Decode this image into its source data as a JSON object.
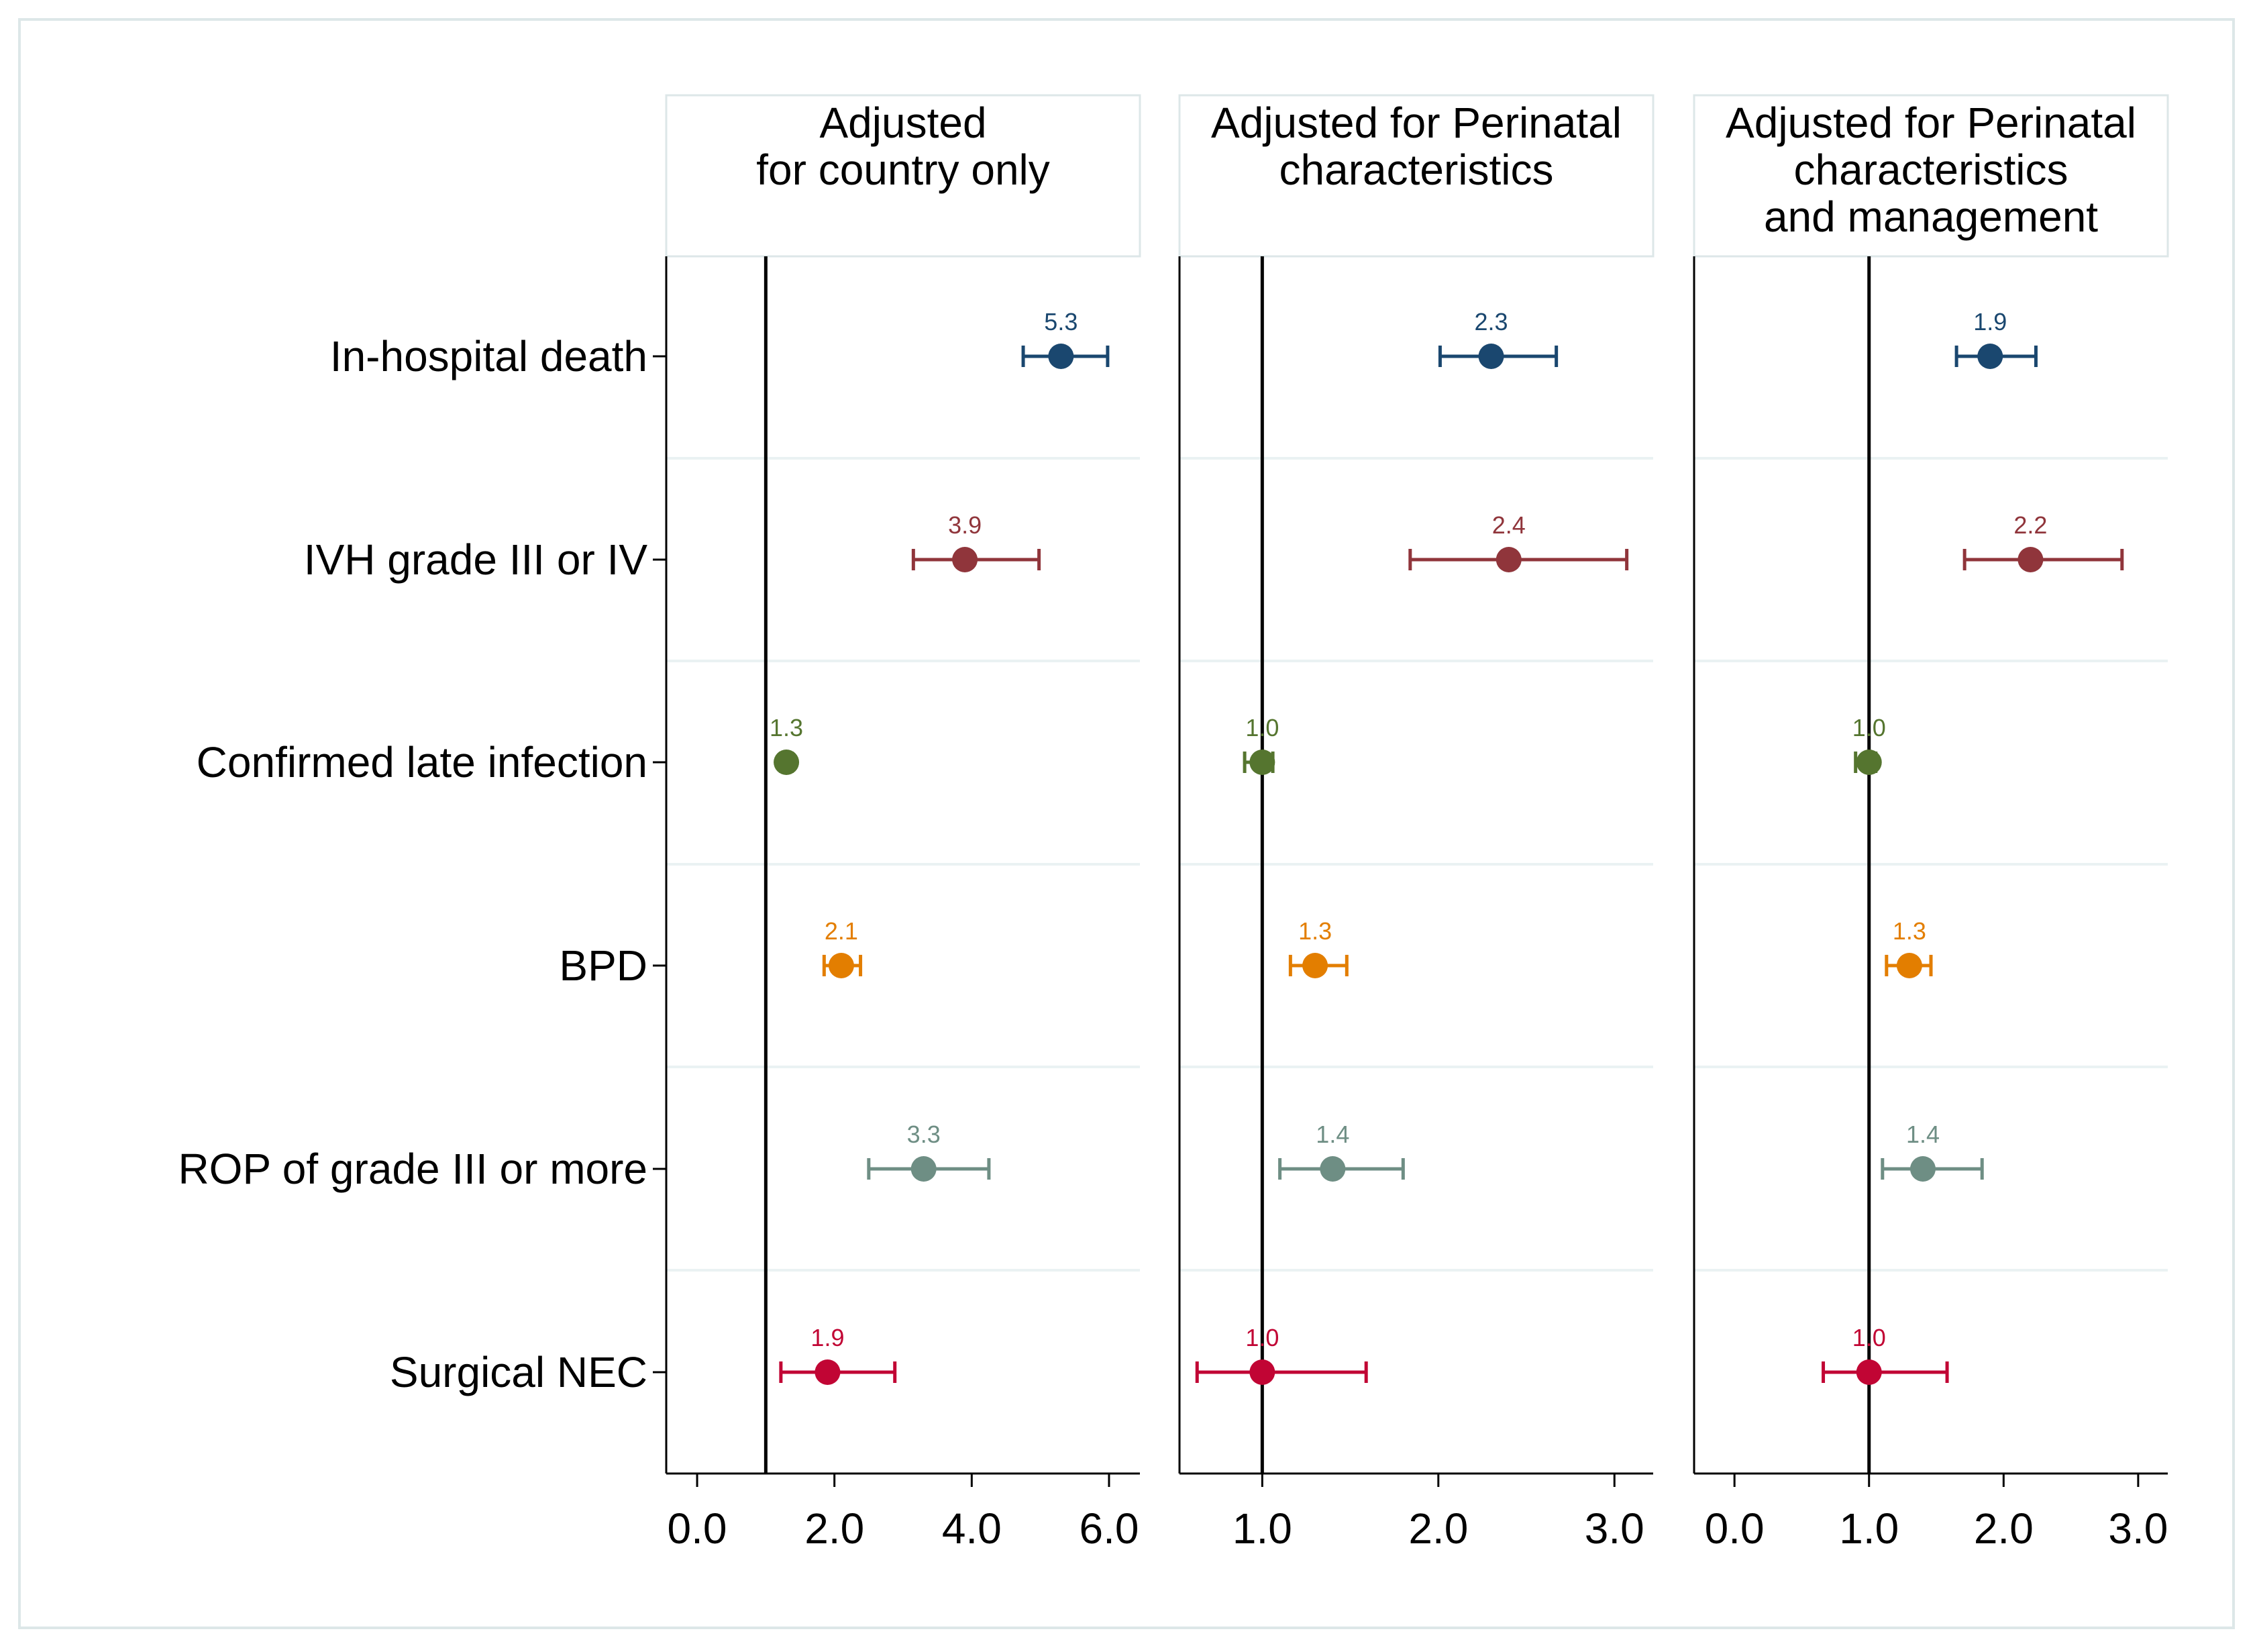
{
  "colors": {
    "In-hospital death": "#1a476f",
    "IVH grade III or IV": "#90353b",
    "Confirmed late infection": "#55752f",
    "BPD": "#e37e00",
    "ROP of grade III or more": "#6e8e84",
    "Surgical NEC": "#c10534",
    "reference_line": "#000000",
    "axis": "#000000",
    "row_divider": "#eaf2f3",
    "panel_border": "#dde7e8",
    "outer_border": "#dde7e8"
  },
  "chart_data": [
    {
      "type": "forest",
      "title": "Adjusted\nfor country only",
      "categories": [
        "In-hospital death",
        "IVH grade III or IV",
        "Confirmed late infection",
        "BPD",
        "ROP of grade III or more",
        "Surgical NEC"
      ],
      "xlim": [
        -0.45,
        6.45
      ],
      "xticks": [
        0,
        2,
        4,
        6
      ],
      "xtick_labels": [
        "0.0",
        "2.0",
        "4.0",
        "6.0"
      ],
      "reference_value": 1,
      "grid": false,
      "points": [
        {
          "category": "In-hospital death",
          "estimate": 5.3,
          "ci_low": 4.75,
          "ci_high": 5.98,
          "label": "5.3"
        },
        {
          "category": "IVH grade III or IV",
          "estimate": 3.9,
          "ci_low": 3.15,
          "ci_high": 4.98,
          "label": "3.9"
        },
        {
          "category": "Confirmed late infection",
          "estimate": 1.3,
          "ci_low": 1.22,
          "ci_high": 1.38,
          "label": "1.3"
        },
        {
          "category": "BPD",
          "estimate": 2.1,
          "ci_low": 1.85,
          "ci_high": 2.38,
          "label": "2.1"
        },
        {
          "category": "ROP of grade III or more",
          "estimate": 3.3,
          "ci_low": 2.5,
          "ci_high": 4.25,
          "label": "3.3"
        },
        {
          "category": "Surgical NEC",
          "estimate": 1.9,
          "ci_low": 1.22,
          "ci_high": 2.88,
          "label": "1.9"
        }
      ]
    },
    {
      "type": "forest",
      "title": "Adjusted for Perinatal\ncharacteristics",
      "categories": [
        "In-hospital death",
        "IVH grade III or IV",
        "Confirmed late infection",
        "BPD",
        "ROP of grade III or more",
        "Surgical NEC"
      ],
      "xlim": [
        0.53,
        3.22
      ],
      "xticks": [
        1,
        2,
        3
      ],
      "xtick_labels": [
        "1.0",
        "2.0",
        "3.0"
      ],
      "reference_value": 1,
      "grid": false,
      "points": [
        {
          "category": "In-hospital death",
          "estimate": 2.3,
          "ci_low": 2.01,
          "ci_high": 2.67,
          "label": "2.3"
        },
        {
          "category": "IVH grade III or IV",
          "estimate": 2.4,
          "ci_low": 1.84,
          "ci_high": 3.07,
          "label": "2.4"
        },
        {
          "category": "Confirmed late infection",
          "estimate": 1.0,
          "ci_low": 0.9,
          "ci_high": 1.06,
          "label": "1.0"
        },
        {
          "category": "BPD",
          "estimate": 1.3,
          "ci_low": 1.16,
          "ci_high": 1.48,
          "label": "1.3"
        },
        {
          "category": "ROP of grade III or more",
          "estimate": 1.4,
          "ci_low": 1.1,
          "ci_high": 1.8,
          "label": "1.4"
        },
        {
          "category": "Surgical NEC",
          "estimate": 1.0,
          "ci_low": 0.63,
          "ci_high": 1.59,
          "label": "1.0"
        }
      ]
    },
    {
      "type": "forest",
      "title": "Adjusted for Perinatal\ncharacteristics\nand management",
      "categories": [
        "In-hospital death",
        "IVH grade III or IV",
        "Confirmed late infection",
        "BPD",
        "ROP of grade III or more",
        "Surgical NEC"
      ],
      "xlim": [
        -0.3,
        3.22
      ],
      "xticks": [
        0,
        1,
        2,
        3
      ],
      "xtick_labels": [
        "0.0",
        "1.0",
        "2.0",
        "3.0"
      ],
      "reference_value": 1,
      "grid": false,
      "points": [
        {
          "category": "In-hospital death",
          "estimate": 1.9,
          "ci_low": 1.65,
          "ci_high": 2.24,
          "label": "1.9"
        },
        {
          "category": "IVH grade III or IV",
          "estimate": 2.2,
          "ci_low": 1.71,
          "ci_high": 2.88,
          "label": "2.2"
        },
        {
          "category": "Confirmed late infection",
          "estimate": 1.0,
          "ci_low": 0.9,
          "ci_high": 1.05,
          "label": "1.0"
        },
        {
          "category": "BPD",
          "estimate": 1.3,
          "ci_low": 1.13,
          "ci_high": 1.46,
          "label": "1.3"
        },
        {
          "category": "ROP of grade III or more",
          "estimate": 1.4,
          "ci_low": 1.1,
          "ci_high": 1.84,
          "label": "1.4"
        },
        {
          "category": "Surgical NEC",
          "estimate": 1.0,
          "ci_low": 0.66,
          "ci_high": 1.58,
          "label": "1.0"
        }
      ]
    }
  ]
}
